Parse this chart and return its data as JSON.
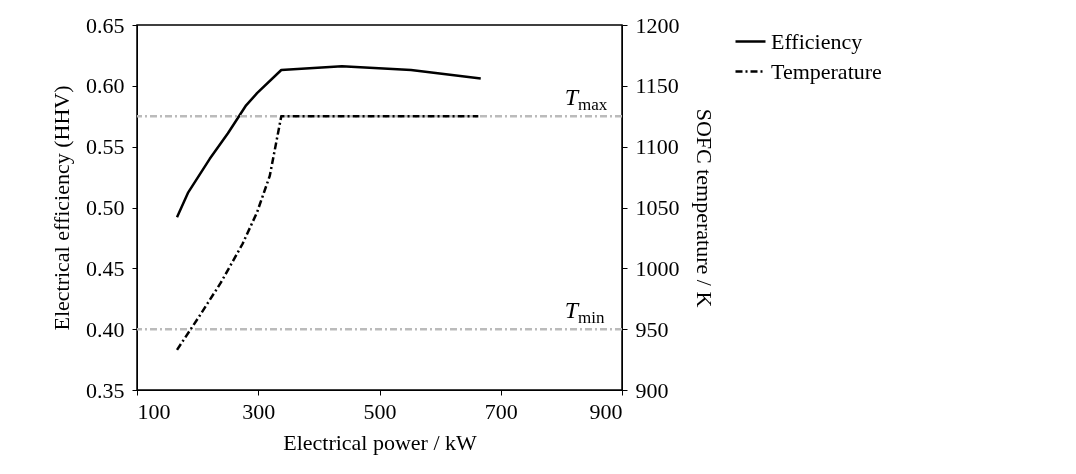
{
  "chart_data": {
    "type": "line",
    "xlabel": "Electrical power / kW",
    "ylabel": "Electrical efficiency (HHV)",
    "y2label": "SOFC temperature / K",
    "xlim": [
      100,
      900
    ],
    "xticks": [
      100,
      300,
      500,
      700,
      900
    ],
    "ylim": [
      0.35,
      0.65
    ],
    "yticks": [
      0.35,
      {
        "value": 0.4,
        "label": "0.40"
      },
      0.45,
      {
        "value": 0.5,
        "label": "0.50"
      },
      0.55,
      {
        "value": 0.6,
        "label": "0.60"
      },
      0.65
    ],
    "y2lim": [
      900,
      1200
    ],
    "y2ticks": [
      900,
      950,
      1000,
      1050,
      1100,
      1150,
      1200
    ],
    "grid": false,
    "legend": "right",
    "marker": "none",
    "series": [
      {
        "name": "Efficiency",
        "color": "#000000",
        "line_style": "solid",
        "x": [
          166,
          184,
          220,
          250,
          280,
          298,
          338,
          438,
          552,
          667
        ],
        "values": [
          0.492,
          0.512,
          0.54,
          0.561,
          0.584,
          0.594,
          0.613,
          0.616,
          0.613,
          0.606
        ]
      },
      {
        "name": "Temperature",
        "color": "#000000",
        "line_style": "dashdot",
        "axis": "y2",
        "x": [
          166,
          202,
          238,
          274,
          298,
          319,
          338,
          663
        ],
        "values": [
          933,
          960,
          988,
          1020,
          1046,
          1076,
          1125,
          1125
        ]
      }
    ],
    "ref_lines": [
      {
        "axis": "y2",
        "value": 1125,
        "label": "T$_{max}$",
        "color": "#bbbbbb",
        "line_style": "dashdot"
      },
      {
        "axis": "y2",
        "value": 950,
        "label": "T$_{min}$",
        "color": "#bbbbbb",
        "line_style": "dashdot"
      }
    ]
  }
}
